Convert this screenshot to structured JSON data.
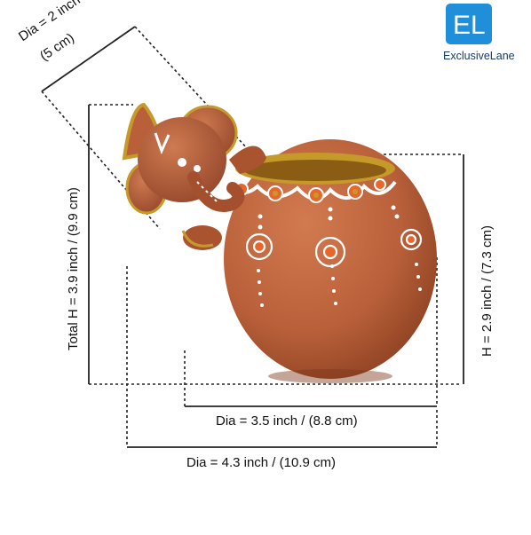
{
  "brand": {
    "logo_letters": "EL",
    "name": "ExclusiveLane",
    "color": "#1f8fd9"
  },
  "dimensions": {
    "top_dia_line1": "Dia = 2 inch /",
    "top_dia_line2": "(5 cm)",
    "total_height": "Total H = 3.9 inch / (9.9 cm)",
    "pot_height": "H = 2.9 inch / (7.3 cm)",
    "base_dia": "Dia = 3.5 inch / (8.8 cm)",
    "overall_dia": "Dia = 4.3 inch / (10.9 cm)"
  },
  "colors": {
    "terracotta": "#b9603a",
    "terracotta_dark": "#8f4424",
    "gold": "#c69a2a",
    "white_paint": "#ffffff",
    "orange_paint": "#e8662a"
  }
}
